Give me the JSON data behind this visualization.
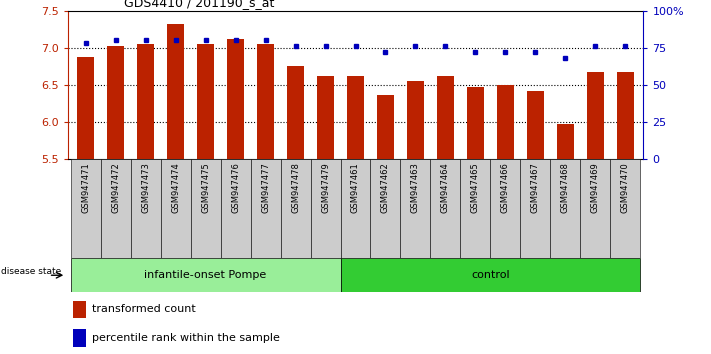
{
  "title": "GDS4410 / 201190_s_at",
  "samples_all": [
    "GSM947471",
    "GSM947472",
    "GSM947473",
    "GSM947474",
    "GSM947475",
    "GSM947476",
    "GSM947477",
    "GSM947478",
    "GSM947479",
    "GSM947461",
    "GSM947462",
    "GSM947463",
    "GSM947464",
    "GSM947465",
    "GSM947466",
    "GSM947467",
    "GSM947468",
    "GSM947469",
    "GSM947470"
  ],
  "red_heights": [
    6.88,
    7.02,
    7.05,
    7.32,
    7.05,
    7.12,
    7.05,
    6.75,
    6.62,
    6.62,
    6.37,
    6.55,
    6.62,
    6.47,
    6.5,
    6.42,
    5.97,
    6.68,
    6.67
  ],
  "blue_pcts": [
    78,
    80,
    80,
    80,
    80,
    80,
    80,
    76,
    76,
    76,
    72,
    76,
    76,
    72,
    72,
    72,
    68,
    76,
    76
  ],
  "group1_label": "infantile-onset Pompe",
  "group2_label": "control",
  "group1_count": 9,
  "group2_count": 10,
  "ylim_left": [
    5.5,
    7.5
  ],
  "ylim_right": [
    0,
    100
  ],
  "yticks_left": [
    5.5,
    6.0,
    6.5,
    7.0,
    7.5
  ],
  "yticks_right": [
    0,
    25,
    50,
    75,
    100
  ],
  "ytick_labels_right": [
    "0",
    "25",
    "50",
    "75",
    "100%"
  ],
  "bar_color": "#bb2200",
  "dot_color": "#0000bb",
  "group1_bg": "#99ee99",
  "group2_bg": "#33cc33",
  "xtick_bg": "#cccccc",
  "legend_red_label": "transformed count",
  "legend_blue_label": "percentile rank within the sample",
  "disease_state_label": "disease state",
  "gridline_y": [
    6.0,
    6.5,
    7.0
  ],
  "bar_width": 0.55,
  "bar_bottom": 5.5
}
